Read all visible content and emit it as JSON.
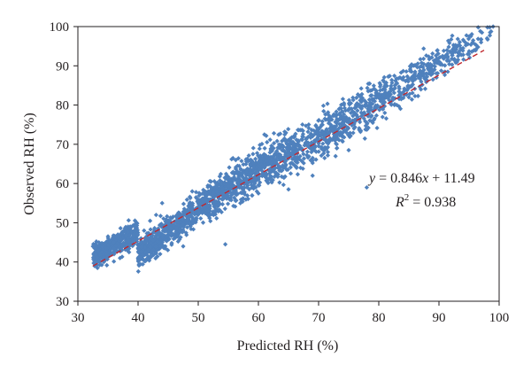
{
  "chart_data": {
    "type": "scatter",
    "xlabel": "Predicted RH (%)",
    "ylabel": "Observed RH (%)",
    "xlim": [
      30,
      100
    ],
    "ylim": [
      30,
      100
    ],
    "xticks": [
      30,
      40,
      50,
      60,
      70,
      80,
      90,
      100
    ],
    "yticks": [
      30,
      40,
      50,
      60,
      70,
      80,
      90,
      100
    ],
    "grid": false,
    "legend": "none",
    "marker_color": "#4f81bd",
    "fit_line": {
      "slope": 0.846,
      "intercept": 11.49,
      "x_range": [
        32.5,
        97.5
      ],
      "color": "#c0272d",
      "style": "dashed"
    },
    "annotation": {
      "equation": "y = 0.846x + 11.49",
      "r_squared": "R2 = 0.938"
    },
    "point_count_estimate": 2400,
    "points_sample": [
      [
        32.5,
        44.0
      ],
      [
        33.5,
        45.0
      ],
      [
        34.0,
        42.5
      ],
      [
        35.0,
        41.5
      ],
      [
        36.0,
        43.5
      ],
      [
        37.0,
        41.0
      ],
      [
        38.5,
        42.5
      ],
      [
        40.0,
        44.5
      ],
      [
        40.5,
        46.0
      ],
      [
        41.0,
        48.0
      ],
      [
        42.0,
        50.5
      ],
      [
        42.5,
        47.5
      ],
      [
        43.0,
        52.0
      ],
      [
        44.0,
        55.0
      ],
      [
        45.0,
        50.5
      ],
      [
        47.0,
        48.5
      ],
      [
        47.5,
        44.0
      ],
      [
        48.0,
        53.0
      ],
      [
        49.0,
        58.0
      ],
      [
        50.0,
        55.5
      ],
      [
        52.0,
        52.0
      ],
      [
        53.0,
        60.0
      ],
      [
        54.0,
        57.0
      ],
      [
        54.5,
        44.5
      ],
      [
        55.0,
        59.5
      ],
      [
        57.0,
        55.0
      ],
      [
        58.0,
        63.0
      ],
      [
        60.0,
        57.5
      ],
      [
        61.0,
        64.0
      ],
      [
        62.0,
        61.0
      ],
      [
        64.0,
        66.5
      ],
      [
        65.0,
        58.5
      ],
      [
        66.0,
        68.0
      ],
      [
        67.0,
        64.0
      ],
      [
        68.0,
        70.5
      ],
      [
        69.0,
        62.0
      ],
      [
        70.0,
        72.0
      ],
      [
        71.0,
        66.5
      ],
      [
        72.0,
        74.0
      ],
      [
        73.0,
        70.0
      ],
      [
        74.0,
        75.5
      ],
      [
        75.0,
        68.5
      ],
      [
        76.0,
        78.0
      ],
      [
        77.0,
        73.5
      ],
      [
        78.0,
        80.0
      ],
      [
        78.0,
        59.0
      ],
      [
        79.0,
        75.5
      ],
      [
        80.0,
        82.0
      ],
      [
        81.0,
        78.0
      ],
      [
        82.0,
        84.0
      ],
      [
        83.0,
        80.0
      ],
      [
        84.0,
        86.5
      ],
      [
        85.0,
        82.0
      ],
      [
        86.0,
        88.0
      ],
      [
        87.0,
        84.0
      ],
      [
        88.0,
        90.0
      ],
      [
        89.0,
        86.5
      ],
      [
        90.0,
        92.0
      ],
      [
        91.0,
        88.5
      ],
      [
        92.0,
        93.5
      ],
      [
        93.0,
        91.0
      ],
      [
        94.0,
        94.5
      ],
      [
        95.0,
        93.0
      ],
      [
        96.0,
        95.5
      ],
      [
        97.0,
        96.0
      ],
      [
        98.0,
        97.0
      ],
      [
        98.5,
        98.5
      ],
      [
        99.0,
        100.0
      ]
    ]
  }
}
